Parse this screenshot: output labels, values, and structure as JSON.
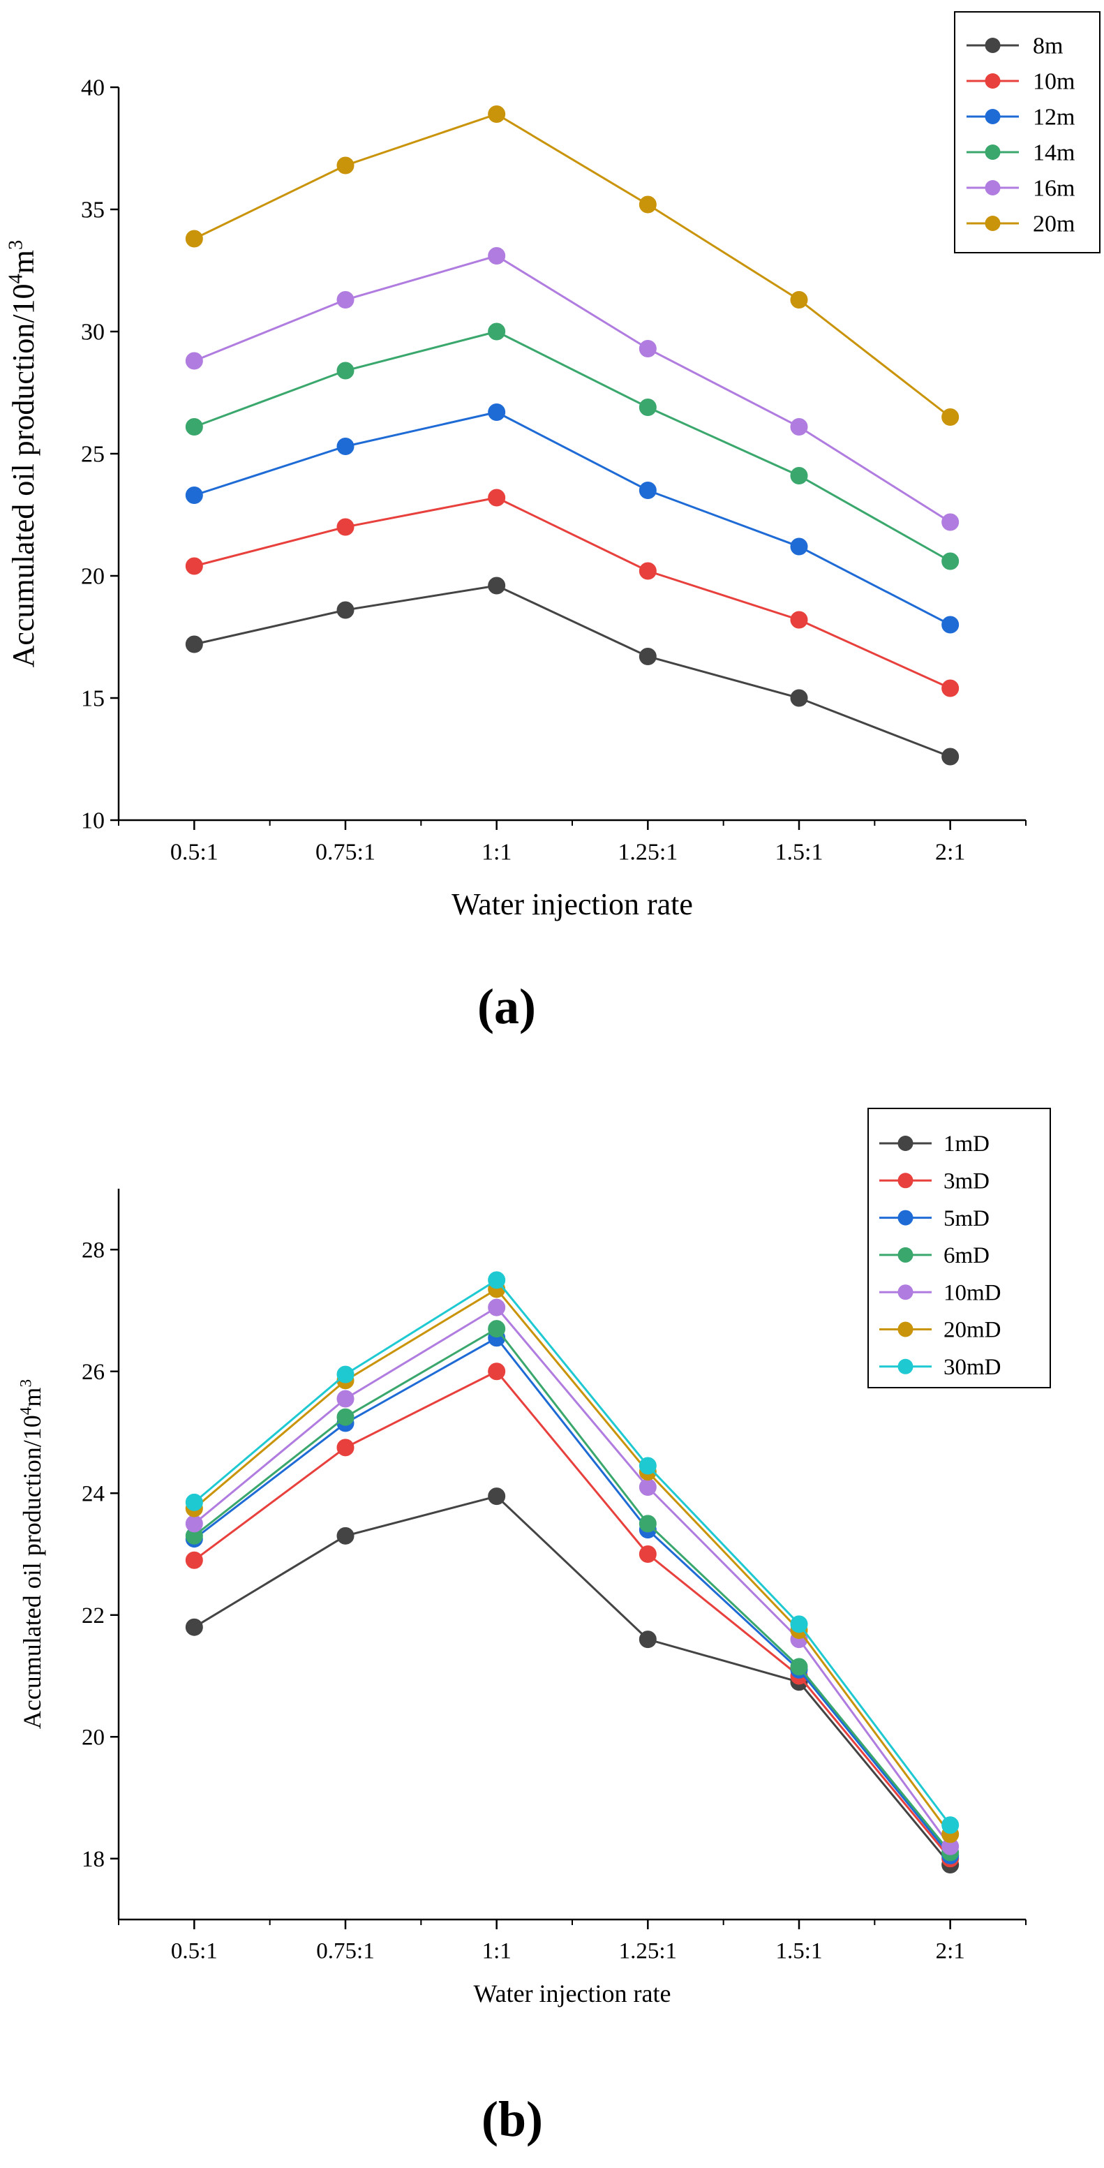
{
  "panels": [
    {
      "caption": "(a)",
      "chart_data": {
        "type": "line",
        "title": "",
        "xlabel": "Water injection rate",
        "ylabel_base": "Accumulated oil production/10",
        "ylabel_exp1": "4",
        "ylabel_mid": "m",
        "ylabel_exp2": "3",
        "categories": [
          "0.5:1",
          "0.75:1",
          "1:1",
          "1.25:1",
          "1.5:1",
          "2:1"
        ],
        "ylim": [
          10,
          40
        ],
        "yticks": [
          10,
          15,
          20,
          25,
          30,
          35,
          40
        ],
        "legend_position": "top-right",
        "series": [
          {
            "name": "8m",
            "color": "#444444",
            "values": [
              17.2,
              18.6,
              19.6,
              16.7,
              15.0,
              12.6
            ]
          },
          {
            "name": "10m",
            "color": "#e8403c",
            "values": [
              20.4,
              22.0,
              23.2,
              20.2,
              18.2,
              15.4
            ]
          },
          {
            "name": "12m",
            "color": "#1f6bd6",
            "values": [
              23.3,
              25.3,
              26.7,
              23.5,
              21.2,
              18.0
            ]
          },
          {
            "name": "14m",
            "color": "#3aa76d",
            "values": [
              26.1,
              28.4,
              30.0,
              26.9,
              24.1,
              20.6
            ]
          },
          {
            "name": "16m",
            "color": "#b07ce0",
            "values": [
              28.8,
              31.3,
              33.1,
              29.3,
              26.1,
              22.2
            ]
          },
          {
            "name": "20m",
            "color": "#c9930a",
            "values": [
              33.8,
              36.8,
              38.9,
              35.2,
              31.3,
              26.5
            ]
          }
        ]
      }
    },
    {
      "caption": "(b)",
      "chart_data": {
        "type": "line",
        "title": "",
        "xlabel": "Water injection rate",
        "ylabel_base": "Accumulated oil production/10",
        "ylabel_exp1": "4",
        "ylabel_mid": "m",
        "ylabel_exp2": "3",
        "categories": [
          "0.5:1",
          "0.75:1",
          "1:1",
          "1.25:1",
          "1.5:1",
          "2:1"
        ],
        "ylim": [
          17,
          29
        ],
        "yticks": [
          18,
          20,
          22,
          24,
          26,
          28
        ],
        "legend_position": "top-right",
        "series": [
          {
            "name": "1mD",
            "color": "#444444",
            "values": [
              21.8,
              23.3,
              23.95,
              21.6,
              20.9,
              17.9
            ]
          },
          {
            "name": "3mD",
            "color": "#e8403c",
            "values": [
              22.9,
              24.75,
              26.0,
              23.0,
              21.0,
              18.0
            ]
          },
          {
            "name": "5mD",
            "color": "#1f6bd6",
            "values": [
              23.25,
              25.15,
              26.55,
              23.4,
              21.1,
              18.05
            ]
          },
          {
            "name": "6mD",
            "color": "#3aa76d",
            "values": [
              23.3,
              25.25,
              26.7,
              23.5,
              21.15,
              18.1
            ]
          },
          {
            "name": "10mD",
            "color": "#b07ce0",
            "values": [
              23.5,
              25.55,
              27.05,
              24.1,
              21.6,
              18.2
            ]
          },
          {
            "name": "20mD",
            "color": "#c9930a",
            "values": [
              23.75,
              25.85,
              27.35,
              24.35,
              21.75,
              18.4
            ]
          },
          {
            "name": "30mD",
            "color": "#1ec9d2",
            "values": [
              23.85,
              25.95,
              27.5,
              24.45,
              21.85,
              18.55
            ]
          }
        ]
      }
    }
  ]
}
